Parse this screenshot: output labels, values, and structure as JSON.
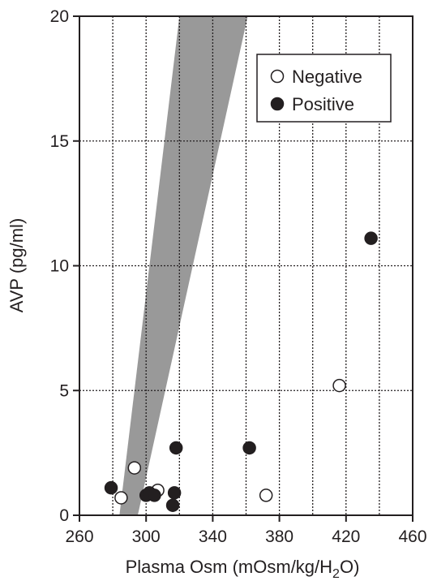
{
  "chart_data": {
    "type": "scatter",
    "title": "",
    "xlabel_parts": [
      "Plasma Osm (mOsm/kg/H",
      "2",
      "O)"
    ],
    "ylabel": "AVP (pg/ml)",
    "xlim": [
      260,
      460
    ],
    "ylim": [
      0,
      20
    ],
    "x_ticks": [
      260,
      300,
      340,
      380,
      420,
      460
    ],
    "y_ticks": [
      0,
      5,
      10,
      15,
      20
    ],
    "x_gridlines": [
      280,
      300,
      320,
      340,
      360,
      380,
      400,
      420,
      440
    ],
    "y_gridlines": [
      5,
      10,
      15
    ],
    "grid": "dotted",
    "legend": {
      "position": "top-right",
      "entries": [
        {
          "label": "Negative",
          "marker": "open-circle"
        },
        {
          "label": "Positive",
          "marker": "filled-circle"
        }
      ]
    },
    "normal_range_band": {
      "color": "#999999",
      "polygon": [
        [
          284,
          0
        ],
        [
          295,
          0
        ],
        [
          361,
          20
        ],
        [
          320,
          20
        ]
      ]
    },
    "series": [
      {
        "name": "Negative",
        "marker": "open-circle",
        "points": [
          [
            293,
            1.9
          ],
          [
            285,
            0.7
          ],
          [
            307,
            1.0
          ],
          [
            372,
            0.8
          ],
          [
            416,
            5.2
          ]
        ]
      },
      {
        "name": "Positive",
        "marker": "filled-circle",
        "points": [
          [
            279,
            1.1
          ],
          [
            300,
            0.8
          ],
          [
            302,
            0.9
          ],
          [
            305,
            0.8
          ],
          [
            316,
            0.4
          ],
          [
            317,
            0.9
          ],
          [
            318,
            2.7
          ],
          [
            362,
            2.7
          ],
          [
            435,
            11.1
          ]
        ]
      }
    ]
  }
}
